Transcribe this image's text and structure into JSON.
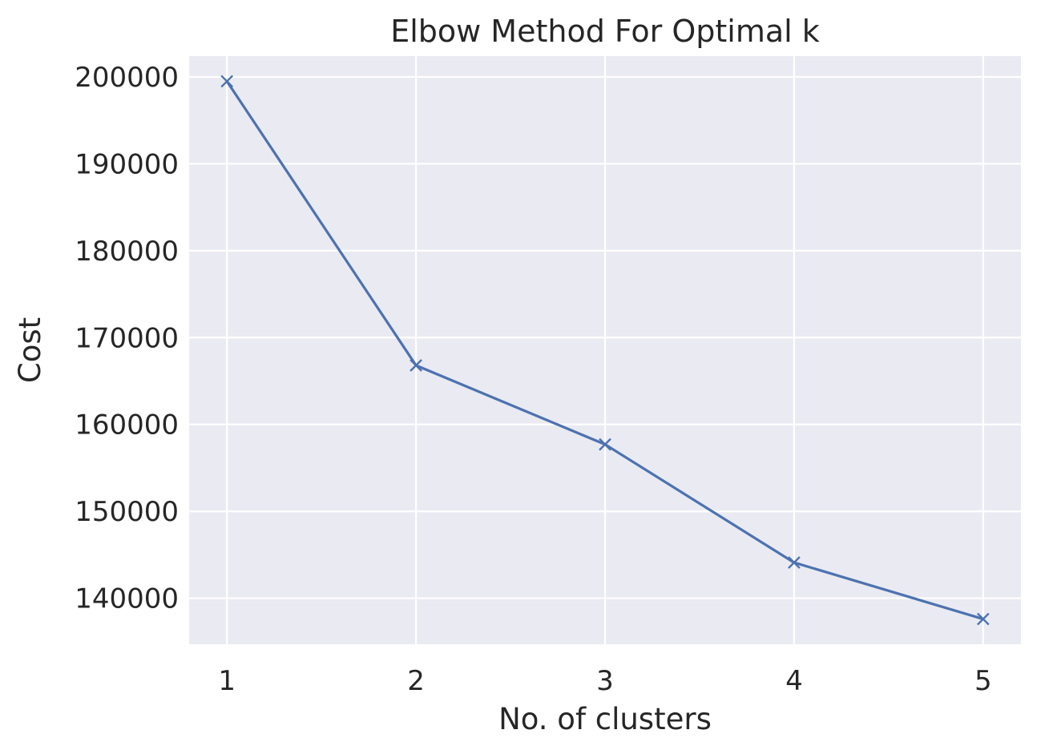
{
  "chart_data": {
    "type": "line",
    "title": "Elbow Method For Optimal k",
    "xlabel": "No. of clusters",
    "ylabel": "Cost",
    "x": [
      1,
      2,
      3,
      4,
      5
    ],
    "series": [
      {
        "values": [
          199500,
          166800,
          157700,
          144100,
          137600
        ]
      }
    ],
    "xticks": [
      "1",
      "2",
      "3",
      "4",
      "5"
    ],
    "yticks": [
      140000,
      150000,
      160000,
      170000,
      180000,
      190000,
      200000
    ],
    "ytick_labels": [
      "140000",
      "150000",
      "160000",
      "170000",
      "180000",
      "190000",
      "200000"
    ],
    "xlim": [
      0.8,
      5.2
    ],
    "ylim": [
      134700,
      202400
    ],
    "grid": true,
    "marker": "x",
    "colors": {
      "line": "#4c72b0",
      "background": "#eaeaf2",
      "grid": "#ffffff"
    }
  }
}
